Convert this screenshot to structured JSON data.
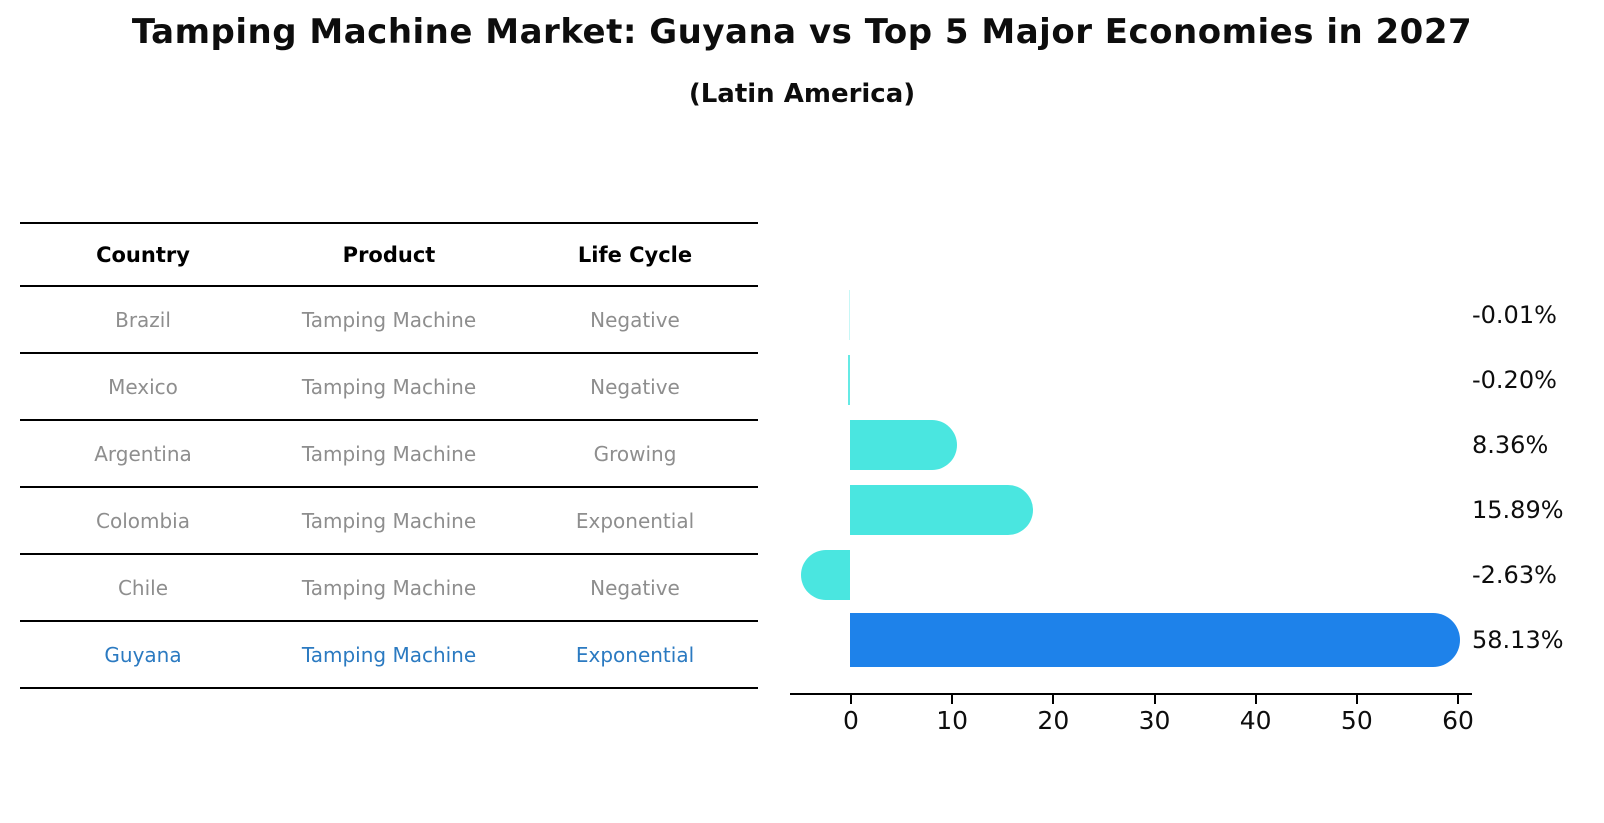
{
  "title": "Tamping Machine Market: Guyana vs Top 5 Major Economies in 2027",
  "subtitle": "(Latin America)",
  "table": {
    "headers": [
      "Country",
      "Product",
      "Life Cycle"
    ],
    "rows": [
      {
        "country": "Brazil",
        "product": "Tamping Machine",
        "life_cycle": "Negative",
        "highlighted": false
      },
      {
        "country": "Mexico",
        "product": "Tamping Machine",
        "life_cycle": "Negative",
        "highlighted": false
      },
      {
        "country": "Argentina",
        "product": "Tamping Machine",
        "life_cycle": "Growing",
        "highlighted": false
      },
      {
        "country": "Colombia",
        "product": "Tamping Machine",
        "life_cycle": "Exponential",
        "highlighted": false
      },
      {
        "country": "Chile",
        "product": "Tamping Machine",
        "life_cycle": "Negative",
        "highlighted": false
      },
      {
        "country": "Guyana",
        "product": "Tamping Machine",
        "life_cycle": "Exponential",
        "highlighted": true
      }
    ]
  },
  "chart_data": {
    "type": "bar",
    "orientation": "horizontal",
    "title": "Tamping Machine Market: Guyana vs Top 5 Major Economies in 2027 (Latin America)",
    "categories": [
      "Brazil",
      "Mexico",
      "Argentina",
      "Colombia",
      "Chile",
      "Guyana"
    ],
    "values": [
      -0.01,
      -0.2,
      8.36,
      15.89,
      -2.63,
      58.13
    ],
    "value_labels": [
      "-0.01%",
      "-0.20%",
      "8.36%",
      "15.89%",
      "-2.63%",
      "58.13%"
    ],
    "xticks": [
      0,
      10,
      20,
      30,
      40,
      50,
      60
    ],
    "xlim": [
      -6,
      61.5
    ],
    "highlight_index": 5,
    "grid": false,
    "legend": false,
    "colors": {
      "default_bar": "#4AE6E0",
      "highlight_bar": "#1E82EA",
      "highlight_text": "#2B7AC1",
      "row_text": "#8E8E8E",
      "label_text": "#0D0D0D"
    }
  }
}
